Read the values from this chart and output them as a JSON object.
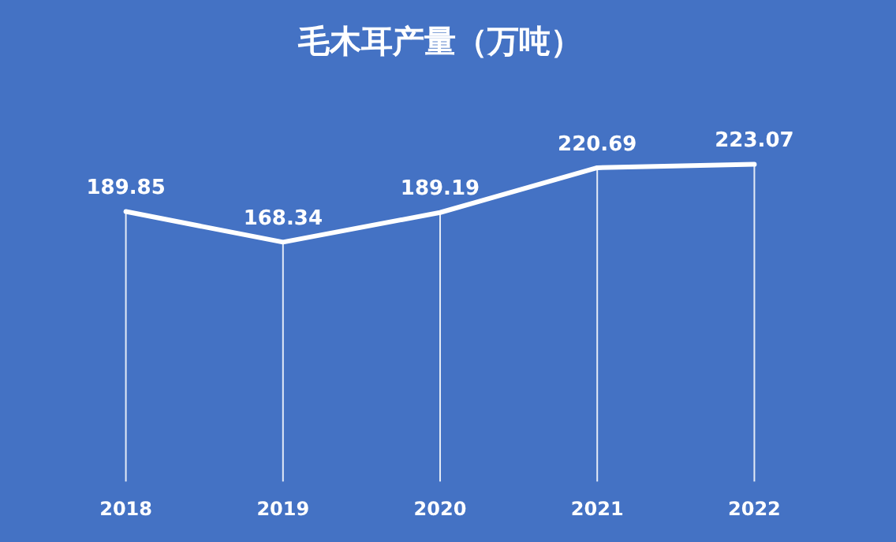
{
  "chart_data": {
    "type": "line",
    "title": "毛木耳产量（万吨）",
    "categories": [
      "2018",
      "2019",
      "2020",
      "2021",
      "2022"
    ],
    "series": [
      {
        "color": "#ffffff",
        "values": [
          189.85,
          168.34,
          189.19,
          220.69,
          223.07
        ]
      }
    ],
    "data_labels": true,
    "grid": "x",
    "legend": false,
    "marker": "none",
    "line_style": "solid",
    "tick_labels": "x"
  }
}
